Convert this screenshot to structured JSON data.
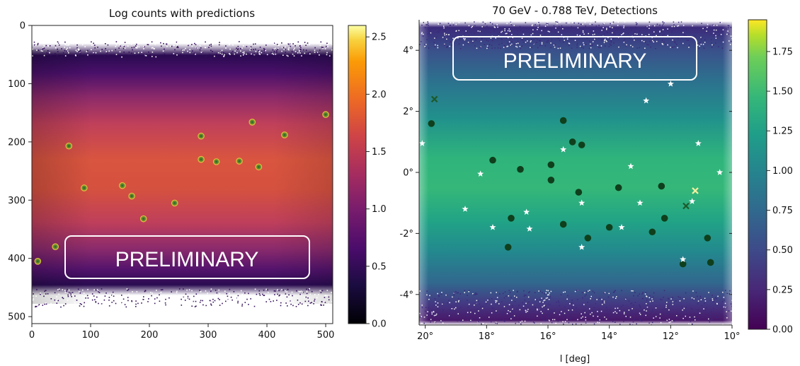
{
  "chart_data": [
    {
      "type": "heatmap",
      "title": "Log counts with predictions",
      "xlabel": "",
      "ylabel": "",
      "xlim": [
        0,
        512
      ],
      "ylim": [
        512,
        0
      ],
      "xticks": [
        "0",
        "100",
        "200",
        "300",
        "400",
        "500"
      ],
      "yticks": [
        "0",
        "100",
        "200",
        "300",
        "400",
        "500"
      ],
      "colormap": "inferno",
      "colorbar": {
        "range": [
          0.0,
          2.6
        ],
        "ticks": [
          "0.0",
          "0.5",
          "1.0",
          "1.5",
          "2.0",
          "2.5"
        ]
      },
      "watermark": "PRELIMINARY",
      "points": {
        "marker": "circle",
        "x": [
          63,
          89,
          154,
          170,
          190,
          243,
          288,
          288,
          314,
          353,
          375,
          386,
          430,
          500,
          10,
          40
        ],
        "y": [
          207,
          279,
          275,
          293,
          332,
          305,
          190,
          230,
          234,
          233,
          166,
          243,
          188,
          153,
          405,
          380
        ]
      }
    },
    {
      "type": "heatmap",
      "title": "70 GeV - 0.788 TeV, Detections",
      "xlabel": "l [deg]",
      "ylabel": "",
      "xlim": [
        20.2,
        10
      ],
      "ylim": [
        -5,
        5
      ],
      "xticks": [
        "20°",
        "18°",
        "16°",
        "14°",
        "12°",
        "10°"
      ],
      "yticks": [
        "-4°",
        "-2°",
        "0°",
        "2°",
        "4°"
      ],
      "colormap": "viridis",
      "colorbar": {
        "range": [
          0.0,
          1.95
        ],
        "ticks": [
          "0.00",
          "0.25",
          "0.50",
          "0.75",
          "1.00",
          "1.25",
          "1.50",
          "1.75"
        ]
      },
      "watermark": "PRELIMINARY",
      "detections": {
        "marker": "circle",
        "l": [
          19.8,
          17.8,
          16.9,
          15.9,
          15.9,
          15.5,
          15.2,
          14.9,
          15.0,
          15.5,
          14.7,
          14.0,
          13.7,
          12.3,
          12.6,
          12.2,
          11.6,
          10.8,
          17.2,
          17.3,
          10.7
        ],
        "b": [
          1.6,
          0.4,
          0.1,
          0.25,
          -0.25,
          1.7,
          1.0,
          0.9,
          -0.65,
          -1.7,
          -2.15,
          -1.8,
          -0.5,
          -0.45,
          -1.95,
          -1.5,
          -3.0,
          -2.15,
          -1.5,
          -2.45,
          -2.95
        ]
      },
      "predictions": {
        "marker": "star",
        "l": [
          20.1,
          18.2,
          17.8,
          16.7,
          16.6,
          15.5,
          14.9,
          14.9,
          13.6,
          13.3,
          12.8,
          12.0,
          13.0,
          11.1,
          11.3,
          10.4,
          11.6,
          18.7
        ],
        "b": [
          0.95,
          -0.05,
          -1.8,
          -1.3,
          -1.85,
          0.75,
          -1.0,
          -2.45,
          -1.8,
          0.2,
          2.35,
          2.9,
          -1.0,
          0.95,
          -0.95,
          0.0,
          -2.85,
          -1.2
        ]
      },
      "crosses": {
        "marker": "x",
        "l": [
          19.7,
          11.5,
          11.2
        ],
        "b": [
          2.4,
          -1.1,
          -0.6
        ]
      }
    }
  ]
}
